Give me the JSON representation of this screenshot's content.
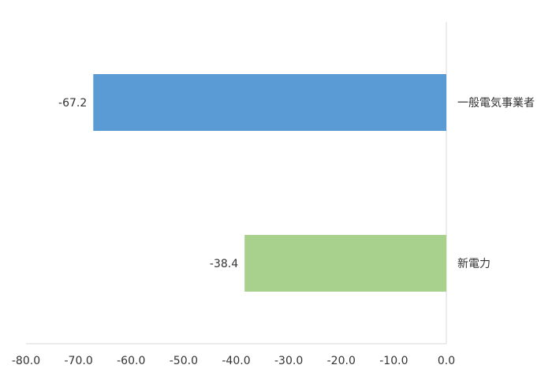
{
  "chart_data": {
    "type": "bar",
    "orientation": "horizontal",
    "categories": [
      "一般電気事業者",
      "新電力"
    ],
    "values": [
      -67.2,
      -38.4
    ],
    "colors": [
      "#5b9bd5",
      "#a9d18e"
    ],
    "data_labels": [
      "-67.2",
      "-38.4"
    ],
    "xlim": [
      -80,
      0
    ],
    "xticks": [
      -80,
      -70,
      -60,
      -50,
      -40,
      -30,
      -20,
      -10,
      0
    ],
    "xtick_labels": [
      "-80.0",
      "-70.0",
      "-60.0",
      "-50.0",
      "-40.0",
      "-30.0",
      "-20.0",
      "-10.0",
      "0.0"
    ],
    "title": "",
    "xlabel": "",
    "ylabel": "",
    "grid": false,
    "legend": "none"
  }
}
